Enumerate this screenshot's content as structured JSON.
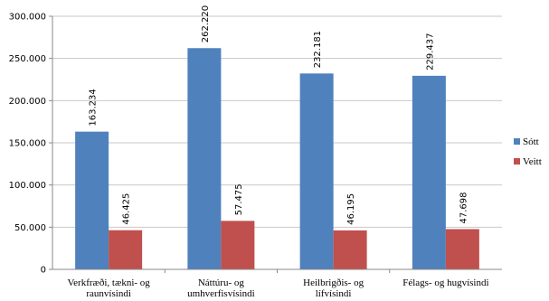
{
  "chart_data": {
    "type": "bar",
    "categories": [
      "Verkfræði, tækni- og raunvísindi",
      "Náttúru- og umhverfisvísindi",
      "Heilbrigðis- og lífvísindi",
      "Félags- og hugvísindi"
    ],
    "series": [
      {
        "name": "Sótt",
        "values": [
          163234,
          262220,
          232181,
          229437
        ],
        "labels": [
          "163.234",
          "262.220",
          "232.181",
          "229.437"
        ],
        "color": "#4f81bd"
      },
      {
        "name": "Veitt",
        "values": [
          46425,
          57475,
          46195,
          47698
        ],
        "labels": [
          "46.425",
          "57.475",
          "46.195",
          "47.698"
        ],
        "color": "#c0504d"
      }
    ],
    "ylim": [
      0,
      300000
    ],
    "yticks": [
      0,
      50000,
      100000,
      150000,
      200000,
      250000,
      300000
    ],
    "ytick_labels": [
      "0",
      "50.000",
      "100.000",
      "150.000",
      "200.000",
      "250.000",
      "300.000"
    ],
    "grid": true,
    "legend": "right",
    "title": "",
    "xlabel": "",
    "ylabel": ""
  }
}
